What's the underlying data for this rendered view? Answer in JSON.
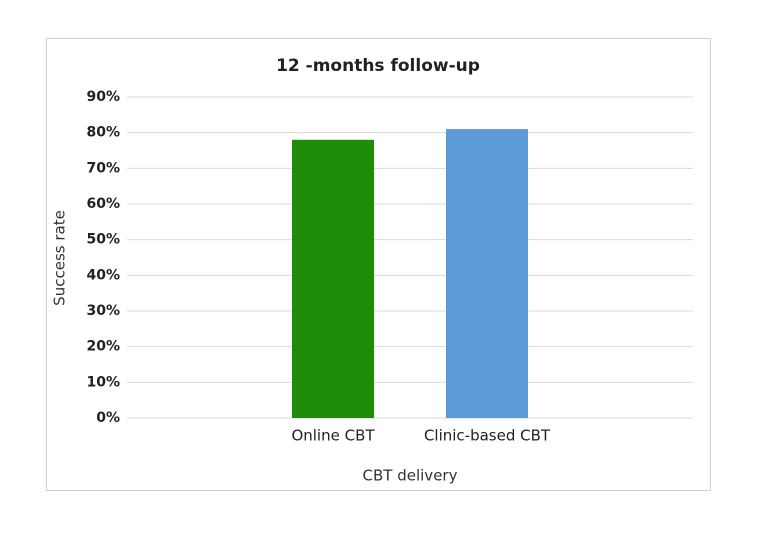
{
  "chart_data": {
    "type": "bar",
    "title": "12 -months follow-up",
    "x_label": "CBT delivery",
    "y_label": "Success rate",
    "categories": [
      "Online CBT",
      "Clinic-based CBT"
    ],
    "values": [
      78,
      81
    ],
    "colors": [
      "#1e8c07",
      "#5b9bd5"
    ],
    "ylim": [
      0,
      90
    ],
    "yticks": [
      {
        "value": 0,
        "label": "0%"
      },
      {
        "value": 10,
        "label": "10%"
      },
      {
        "value": 20,
        "label": "20%"
      },
      {
        "value": 30,
        "label": "30%"
      },
      {
        "value": 40,
        "label": "40%"
      },
      {
        "value": 50,
        "label": "50%"
      },
      {
        "value": 60,
        "label": "60%"
      },
      {
        "value": 70,
        "label": "70%"
      },
      {
        "value": 80,
        "label": "80%"
      },
      {
        "value": 90,
        "label": "90%"
      }
    ],
    "grid": true
  }
}
